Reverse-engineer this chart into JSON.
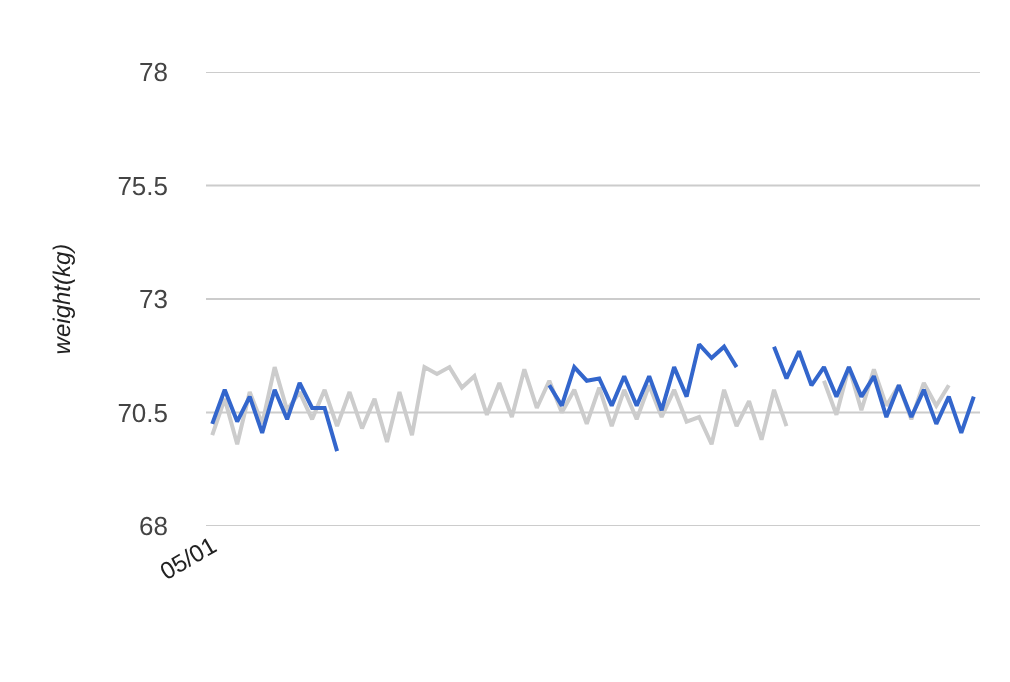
{
  "chart_data": {
    "type": "line",
    "ylabel": "weight(kg)",
    "categories": [
      "05/01",
      null,
      null,
      null,
      null,
      null,
      null,
      null,
      null,
      null,
      null,
      null,
      null,
      null,
      null,
      null,
      null,
      null,
      null,
      null,
      null,
      null,
      null,
      null,
      null,
      null,
      null,
      null,
      null,
      null,
      null,
      null,
      null,
      null,
      null,
      null,
      null,
      null,
      null,
      null,
      null,
      null,
      null,
      null,
      null,
      null,
      null,
      null,
      null,
      null,
      null,
      null,
      null,
      null,
      null,
      null,
      null,
      null,
      null,
      null,
      null,
      null
    ],
    "series": [
      {
        "color": "#cccccc",
        "values": [
          70.0,
          70.8,
          69.8,
          70.95,
          70.25,
          71.5,
          70.55,
          70.95,
          70.35,
          71.0,
          70.2,
          70.95,
          70.15,
          70.8,
          69.85,
          70.95,
          70.0,
          71.5,
          71.35,
          71.5,
          71.05,
          71.3,
          70.45,
          71.15,
          70.4,
          71.45,
          70.6,
          71.2,
          70.5,
          71.0,
          70.25,
          71.05,
          70.2,
          71.0,
          70.35,
          71.1,
          70.4,
          71.0,
          70.3,
          70.4,
          69.8,
          71.0,
          70.2,
          70.75,
          69.9,
          71.0,
          70.2,
          null,
          null,
          null,
          null,
          null,
          null,
          null,
          null,
          null,
          null,
          null,
          null,
          null,
          null,
          null
        ]
      },
      {
        "color": "#cccccc",
        "values": [
          null,
          null,
          null,
          null,
          null,
          null,
          null,
          null,
          null,
          null,
          null,
          null,
          null,
          null,
          null,
          null,
          null,
          null,
          null,
          null,
          null,
          null,
          null,
          null,
          null,
          null,
          null,
          null,
          null,
          null,
          null,
          null,
          null,
          null,
          null,
          null,
          null,
          null,
          null,
          null,
          null,
          null,
          null,
          null,
          null,
          null,
          null,
          null,
          null,
          71.2,
          70.45,
          71.5,
          70.55,
          71.45,
          70.65,
          71.1,
          70.35,
          71.15,
          70.65,
          71.1,
          null,
          null
        ]
      },
      {
        "color": "#3366cc",
        "values": [
          70.25,
          71.0,
          70.3,
          70.85,
          70.05,
          71.0,
          70.35,
          71.15,
          70.6,
          70.6,
          69.65,
          null,
          null,
          null,
          null,
          null,
          null,
          null,
          null,
          null,
          null,
          null,
          null,
          null,
          null,
          null,
          null,
          null,
          null,
          null,
          null,
          null,
          null,
          null,
          null,
          null,
          null,
          null,
          null,
          null,
          null,
          null,
          null,
          null,
          null,
          null,
          null,
          null,
          null,
          null,
          null,
          null,
          null,
          null,
          null,
          null,
          null,
          null,
          null,
          null,
          null,
          null
        ]
      },
      {
        "color": "#3366cc",
        "values": [
          null,
          null,
          null,
          null,
          null,
          null,
          null,
          null,
          null,
          null,
          null,
          null,
          null,
          null,
          null,
          null,
          null,
          null,
          null,
          null,
          null,
          null,
          null,
          null,
          null,
          null,
          null,
          71.1,
          70.65,
          71.5,
          71.2,
          71.25,
          70.65,
          71.3,
          70.65,
          71.3,
          70.55,
          71.5,
          70.85,
          72.0,
          71.7,
          71.95,
          71.5,
          null,
          null,
          null,
          null,
          null,
          null,
          null,
          null,
          null,
          null,
          null,
          null,
          null,
          null,
          null,
          null,
          null,
          null,
          null
        ]
      },
      {
        "color": "#3366cc",
        "values": [
          null,
          null,
          null,
          null,
          null,
          null,
          null,
          null,
          null,
          null,
          null,
          null,
          null,
          null,
          null,
          null,
          null,
          null,
          null,
          null,
          null,
          null,
          null,
          null,
          null,
          null,
          null,
          null,
          null,
          null,
          null,
          null,
          null,
          null,
          null,
          null,
          null,
          null,
          null,
          null,
          null,
          null,
          null,
          null,
          null,
          71.95,
          71.25,
          71.85,
          71.1,
          71.5,
          70.85,
          71.5,
          70.85,
          71.3,
          70.4,
          71.1,
          70.4,
          71.0,
          70.25,
          70.85,
          70.05,
          70.85
        ]
      }
    ],
    "ylim": [
      68,
      78
    ],
    "yticks": [
      68,
      70.5,
      73,
      75.5,
      78
    ],
    "grid": "y",
    "marker": "none",
    "line_style": "solid"
  }
}
